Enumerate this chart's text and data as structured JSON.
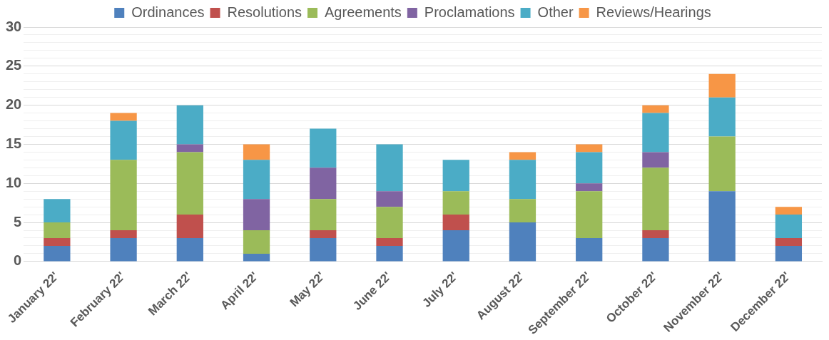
{
  "chart_data": {
    "type": "bar",
    "stacked": true,
    "legend": "top",
    "grid": "y",
    "categories": [
      "January 22'",
      "February 22'",
      "March 22'",
      "April 22'",
      "May 22'",
      "June 22'",
      "July 22'",
      "August 22'",
      "September 22'",
      "October 22'",
      "November 22'",
      "December 22'"
    ],
    "ylim": [
      0,
      30
    ],
    "yticks": [
      0,
      {
        "value": 1,
        "label": null
      },
      {
        "value": 2,
        "label": null
      },
      {
        "value": 3,
        "label": null
      },
      {
        "value": 4,
        "label": null
      },
      5,
      {
        "value": 6,
        "label": null
      },
      {
        "value": 7,
        "label": null
      },
      {
        "value": 8,
        "label": null
      },
      {
        "value": 9,
        "label": null
      },
      10,
      {
        "value": 11,
        "label": null
      },
      {
        "value": 12,
        "label": null
      },
      {
        "value": 13,
        "label": null
      },
      {
        "value": 14,
        "label": null
      },
      15,
      {
        "value": 16,
        "label": null
      },
      {
        "value": 17,
        "label": null
      },
      {
        "value": 18,
        "label": null
      },
      {
        "value": 19,
        "label": null
      },
      20,
      {
        "value": 21,
        "label": null
      },
      {
        "value": 22,
        "label": null
      },
      {
        "value": 23,
        "label": null
      },
      {
        "value": 24,
        "label": null
      },
      25,
      {
        "value": 26,
        "label": null
      },
      {
        "value": 27,
        "label": null
      },
      {
        "value": 28,
        "label": null
      },
      {
        "value": 29,
        "label": null
      },
      30
    ],
    "series": [
      {
        "name": "Ordinances",
        "color": "#4f81bd",
        "values": [
          2,
          3,
          3,
          1,
          3,
          2,
          4,
          5,
          3,
          3,
          9,
          2
        ]
      },
      {
        "name": "Resolutions",
        "color": "#c0504d",
        "values": [
          1,
          1,
          3,
          0,
          1,
          1,
          2,
          0,
          0,
          1,
          0,
          1
        ]
      },
      {
        "name": "Agreements",
        "color": "#9bbb59",
        "values": [
          2,
          9,
          8,
          3,
          4,
          4,
          3,
          3,
          6,
          8,
          7,
          0
        ]
      },
      {
        "name": "Proclamations",
        "color": "#8064a2",
        "values": [
          0,
          0,
          1,
          4,
          4,
          2,
          0,
          0,
          1,
          2,
          0,
          0
        ]
      },
      {
        "name": "Other",
        "color": "#4bacc6",
        "values": [
          3,
          5,
          5,
          5,
          5,
          6,
          4,
          5,
          4,
          5,
          5,
          3
        ]
      },
      {
        "name": "Reviews/Hearings",
        "color": "#f79646",
        "values": [
          0,
          1,
          0,
          2,
          0,
          0,
          0,
          1,
          1,
          1,
          3,
          1
        ]
      }
    ]
  }
}
